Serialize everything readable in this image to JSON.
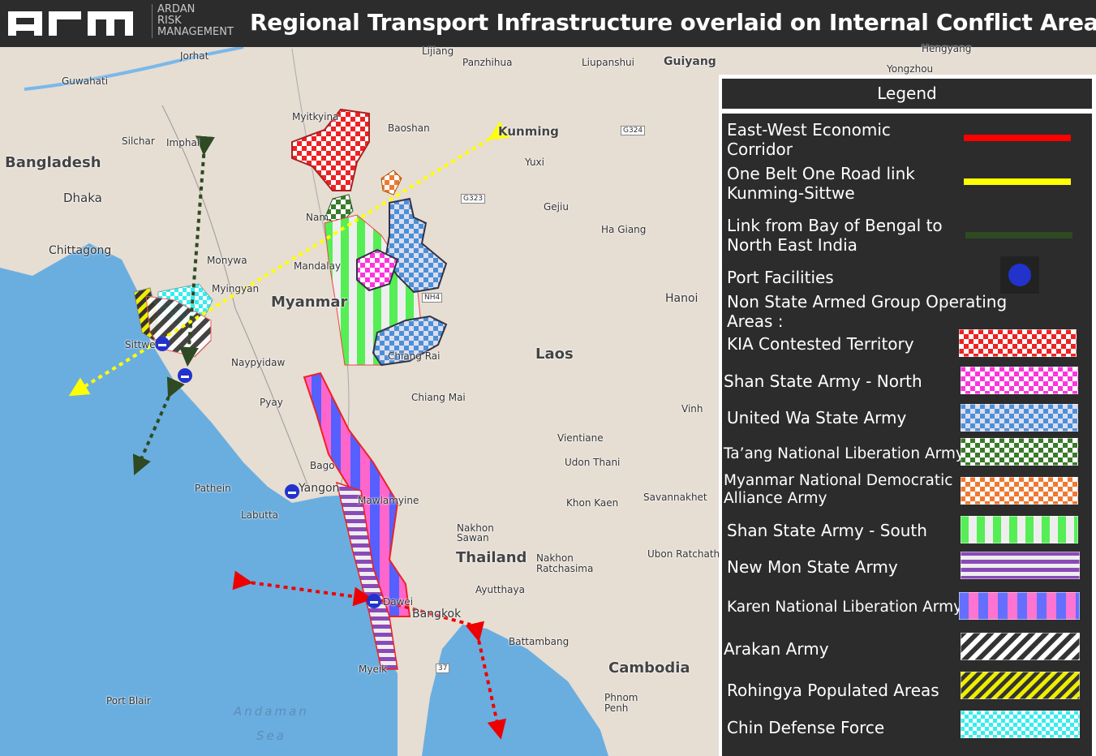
{
  "header": {
    "logo_text": "arm",
    "logo_sub": [
      "ARDAN",
      "RISK",
      "MANAGEMENT"
    ],
    "title": "Regional Transport Infrastructure overlaid on Internal Conflict Areas"
  },
  "map": {
    "labels": {
      "jorhat": "Jorhat",
      "guwahati": "Guwahati",
      "lijiang": "Lijiang",
      "panzhihua": "Panzhihua",
      "liupanshui": "Liupanshui",
      "guiyang": "Guiyang",
      "hengyang": "Hengyang",
      "yongzhou": "Yongzhou",
      "myitkyina": "Myitkyina",
      "baoshan": "Baoshan",
      "kunming": "Kunming",
      "g324": "G324",
      "yuxi": "Yuxi",
      "silchar": "Silchar",
      "imphal": "Imphal",
      "bangladesh": "Bangladesh",
      "dhaka": "Dhaka",
      "g323": "G323",
      "gejiu": "Gejiu",
      "nam": "Nam",
      "hagiang": "Ha Giang",
      "chittagong": "Chittagong",
      "monywa": "Monywa",
      "mandalay": "Mandalay",
      "myingyan": "Myingyan",
      "myanmar": "Myanmar",
      "nh4": "NH4",
      "hanoi": "Hanoi",
      "sittwe": "Sittwe",
      "chiangrai": "Chiang Rai",
      "laos": "Laos",
      "naypyidaw": "Naypyidaw",
      "pyay": "Pyay",
      "chiangmai": "Chiang Mai",
      "vinh": "Vinh",
      "vientiane": "Vientiane",
      "udonthani": "Udon Thani",
      "bago": "Bago",
      "pathein": "Pathein",
      "yangon": "Yangon",
      "mawlamyine": "Mawlamyine",
      "savannakhet": "Savannakhet",
      "khonkaen": "Khon Kaen",
      "labutta": "Labutta",
      "nakhonsawan": "Nakhon Sawan",
      "thailand": "Thailand",
      "nakhonratchasima": "Nakhon Ratchasima",
      "ubon": "Ubon Ratchath",
      "ayutthaya": "Ayutthaya",
      "dawei": "Dawei",
      "bangkok": "Bangkok",
      "battambang": "Battambang",
      "cambodia": "Cambodia",
      "myeik": "Myeik",
      "r37": "37",
      "portblair": "Port Blair",
      "andaman": "Andaman",
      "sea": "Sea",
      "phnompenh": "Phnom Penh"
    }
  },
  "legend": {
    "title": "Legend",
    "items": [
      {
        "label": "East-West Economic Corridor",
        "color": "#ff0000"
      },
      {
        "label": "One Belt One Road link Kunming-Sittwe",
        "color": "#ffff00"
      },
      {
        "label": "Link from Bay of Bengal to North East India",
        "color": "#2e4a22"
      },
      {
        "label": "Port Facilities",
        "icon": "port-icon"
      },
      {
        "label": "Non State Armed Group Operating Areas :"
      },
      {
        "label": "KIA Contested Territory",
        "color": "#ff0000",
        "pattern": "checker"
      },
      {
        "label": "Shan State Army - North",
        "color": "#ff33dd",
        "pattern": "checker"
      },
      {
        "label": "United Wa State Army",
        "color": "#4a90d9",
        "pattern": "checker"
      },
      {
        "label": "Ta’ang National Liberation Army",
        "color": "#3a7a2a",
        "pattern": "checker"
      },
      {
        "label": "Myanmar National Democratic Alliance Army",
        "color": "#f07830",
        "pattern": "checker"
      },
      {
        "label": "Shan State Army - South",
        "color": "#44ee44",
        "pattern": "vertical-stripes"
      },
      {
        "label": "New Mon State Army",
        "color": "#7a3aa8",
        "pattern": "horizontal-stripes"
      },
      {
        "label": "Karen National Liberation Army",
        "color": "#5560ff",
        "pattern": "vertical-stripes"
      },
      {
        "label": "Arakan Army",
        "color": "#555555",
        "pattern": "diagonal-stripes"
      },
      {
        "label": "Rohingya Populated Areas",
        "color": "#eedd00",
        "pattern": "diagonal-stripes"
      },
      {
        "label": "Chin Defense Force",
        "color": "#33eeee",
        "pattern": "checker"
      }
    ]
  }
}
